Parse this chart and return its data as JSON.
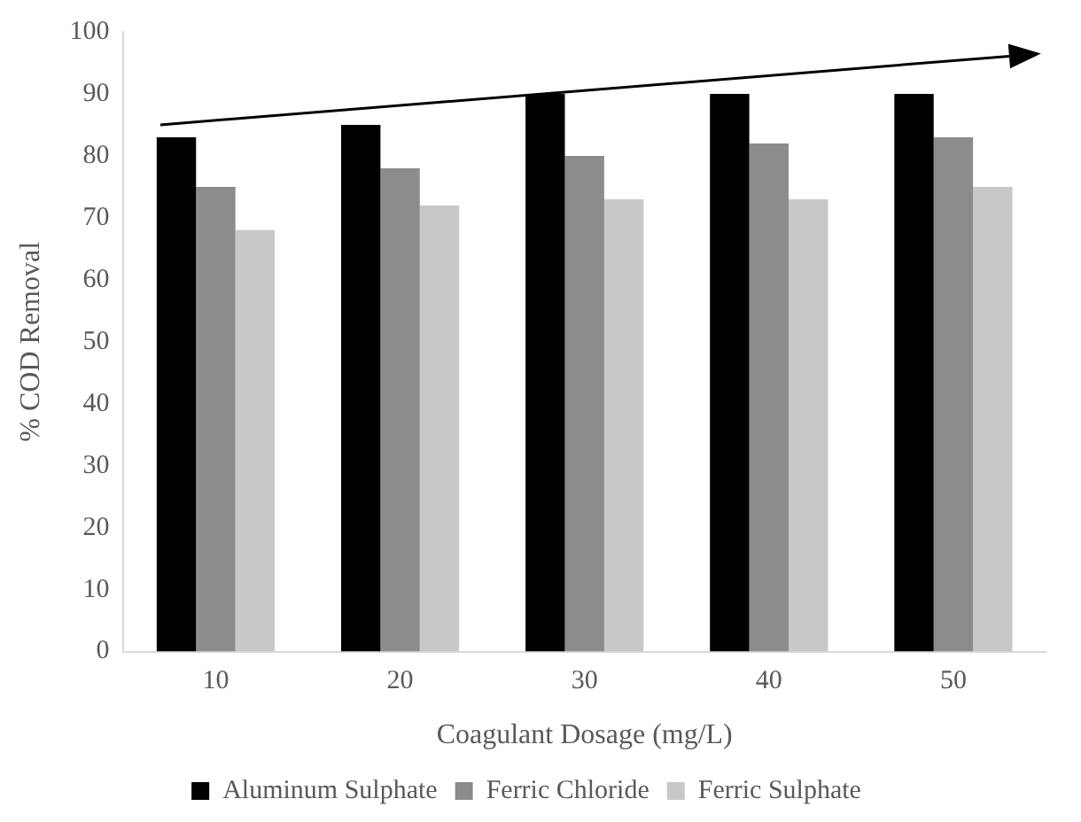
{
  "chart_data": {
    "type": "bar",
    "xlabel": "Coagulant Dosage (mg/L)",
    "ylabel": "% COD Removal",
    "categories": [
      "10",
      "20",
      "30",
      "40",
      "50"
    ],
    "series": [
      {
        "name": "Aluminum Sulphate",
        "color": "#000000",
        "values": [
          83,
          85,
          90,
          90,
          90
        ]
      },
      {
        "name": "Ferric Chloride",
        "color": "#8c8c8c",
        "values": [
          75,
          78,
          80,
          82,
          83
        ]
      },
      {
        "name": "Ferric Sulphate",
        "color": "#c8c8c8",
        "values": [
          68,
          72,
          73,
          73,
          75
        ]
      }
    ],
    "ylim": [
      0,
      100
    ],
    "yticks": [
      0,
      10,
      20,
      30,
      40,
      50,
      60,
      70,
      80,
      90,
      100
    ],
    "grid": false,
    "legend": "bottom"
  }
}
